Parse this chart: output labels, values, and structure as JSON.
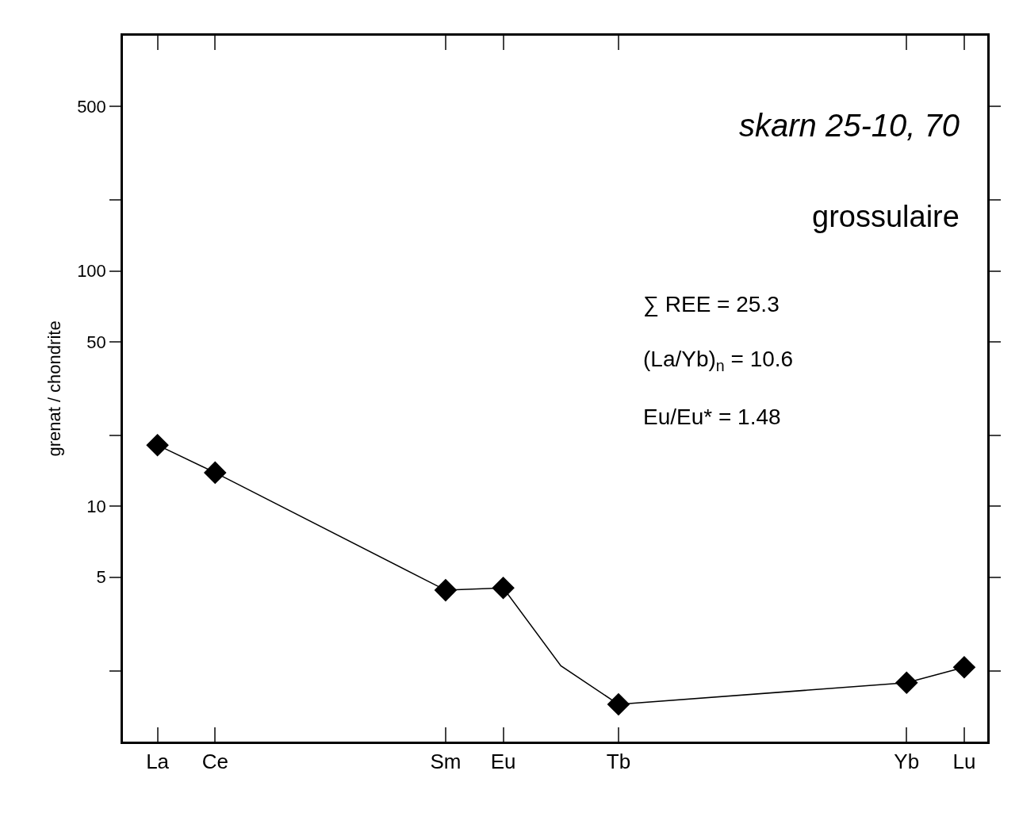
{
  "chart_data": {
    "type": "line",
    "ylabel": "grenat / chondrite",
    "categories": [
      "La",
      "Ce",
      null,
      null,
      null,
      "Sm",
      "Eu",
      null,
      "Tb",
      null,
      null,
      null,
      null,
      "Yb",
      "Lu"
    ],
    "series": [
      {
        "color": "#000000",
        "marker": "none",
        "values": [
          18.2,
          13.9,
          null,
          null,
          null,
          4.4,
          4.5,
          2.1,
          1.44,
          null,
          null,
          null,
          null,
          1.78,
          2.07
        ]
      },
      {
        "type": "scatter",
        "color": "#000000",
        "marker": "diamond",
        "values": [
          18.2,
          13.9,
          null,
          null,
          null,
          4.4,
          4.5,
          null,
          1.44,
          null,
          null,
          null,
          null,
          1.78,
          2.07
        ]
      }
    ],
    "log": true,
    "ylim": [
      1,
      1000
    ],
    "yticks": [
      {
        "value": 2,
        "label": null
      },
      5,
      10,
      {
        "value": 20,
        "label": null
      },
      50,
      100,
      {
        "value": 200,
        "label": null
      },
      500
    ],
    "annotations": [
      "skarn 25-10, 70",
      "grossulaire",
      "∑ REE = 25.3",
      "(La/Yb)$_{n}$ = 10.6",
      "Eu/Eu* = 1.48"
    ],
    "legend": false
  }
}
